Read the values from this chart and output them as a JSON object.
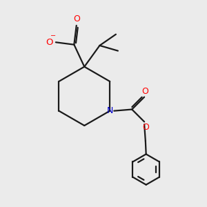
{
  "bg_color": "#ebebeb",
  "bond_color": "#1a1a1a",
  "oxygen_color": "#ff0000",
  "nitrogen_color": "#0000cc",
  "lw": 1.6,
  "dbo": 0.055,
  "xlim": [
    0.5,
    6.5
  ],
  "ylim": [
    0.5,
    7.5
  ]
}
